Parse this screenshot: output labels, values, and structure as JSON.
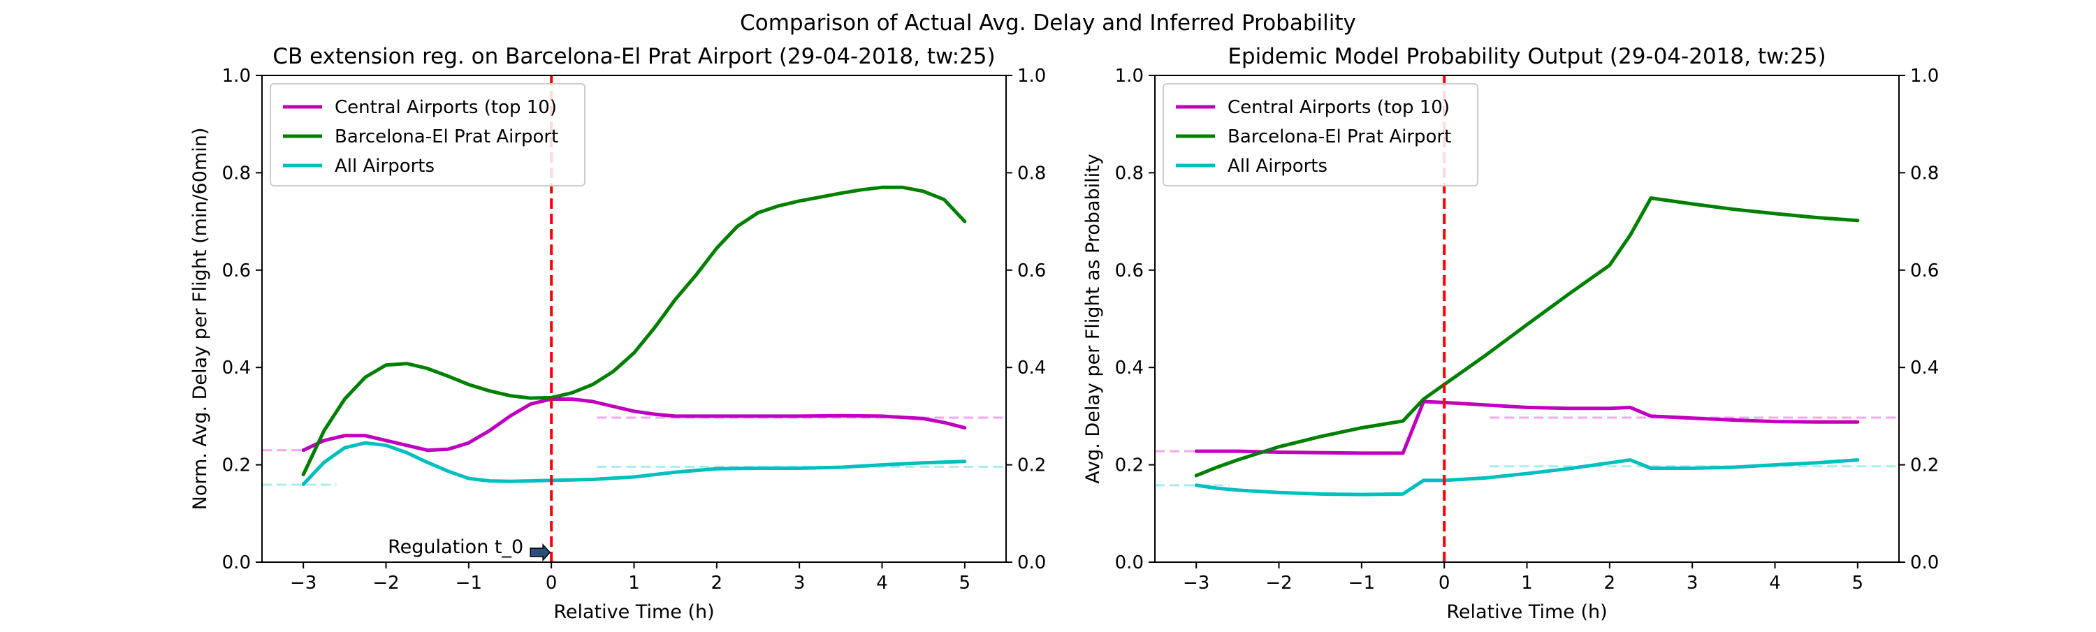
{
  "suptitle": "Comparison of Actual Avg. Delay and Inferred Probability",
  "chart_data": [
    {
      "type": "line",
      "title": "CB extension reg. on Barcelona-El Prat Airport (29-04-2018, tw:25)",
      "xlabel": "Relative Time (h)",
      "ylabel": "Norm. Avg. Delay per Flight (min/60min)",
      "xlim": [
        -3.5,
        5.5
      ],
      "ylim": [
        0,
        1
      ],
      "xticks": [
        "−3",
        "−2",
        "−1",
        "0",
        "1",
        "2",
        "3",
        "4",
        "5"
      ],
      "yticks": [
        "0.0",
        "0.2",
        "0.4",
        "0.6",
        "0.8",
        "1.0"
      ],
      "right_yticks": [
        "0.0",
        "0.2",
        "0.4",
        "0.6",
        "0.8",
        "1.0"
      ],
      "grid": false,
      "legend_position": "upper-left",
      "vline_x": 0,
      "annotation": {
        "text": "Regulation t_0",
        "x": 0,
        "y": 0.02
      },
      "series": [
        {
          "name": "Central Airports (top 10)",
          "color": "#bf00bf",
          "x": [
            -3,
            -2.75,
            -2.5,
            -2.25,
            -2,
            -1.75,
            -1.5,
            -1.25,
            -1,
            -0.75,
            -0.5,
            -0.25,
            0,
            0.25,
            0.5,
            0.75,
            1,
            1.25,
            1.5,
            2,
            2.5,
            3,
            3.5,
            4,
            4.5,
            4.75,
            5
          ],
          "y": [
            0.23,
            0.25,
            0.26,
            0.26,
            0.25,
            0.24,
            0.23,
            0.232,
            0.245,
            0.27,
            0.3,
            0.325,
            0.335,
            0.335,
            0.33,
            0.32,
            0.31,
            0.304,
            0.3,
            0.3,
            0.3,
            0.3,
            0.301,
            0.3,
            0.295,
            0.287,
            0.276
          ]
        },
        {
          "name": "Barcelona-El Prat Airport",
          "color": "#008000",
          "x": [
            -3,
            -2.75,
            -2.5,
            -2.25,
            -2,
            -1.75,
            -1.5,
            -1.25,
            -1,
            -0.75,
            -0.5,
            -0.25,
            0,
            0.25,
            0.5,
            0.75,
            1,
            1.25,
            1.5,
            1.75,
            2,
            2.25,
            2.5,
            2.75,
            3,
            3.25,
            3.5,
            3.75,
            4,
            4.25,
            4.5,
            4.75,
            5
          ],
          "y": [
            0.18,
            0.27,
            0.335,
            0.38,
            0.405,
            0.408,
            0.398,
            0.382,
            0.365,
            0.352,
            0.342,
            0.337,
            0.338,
            0.348,
            0.365,
            0.392,
            0.43,
            0.482,
            0.54,
            0.59,
            0.645,
            0.69,
            0.718,
            0.732,
            0.742,
            0.75,
            0.758,
            0.765,
            0.77,
            0.77,
            0.762,
            0.745,
            0.7
          ]
        },
        {
          "name": "All Airports",
          "color": "#00bfbf",
          "x": [
            -3,
            -2.75,
            -2.5,
            -2.25,
            -2,
            -1.75,
            -1.5,
            -1.25,
            -1,
            -0.75,
            -0.5,
            -0.25,
            0,
            0.5,
            1,
            1.5,
            2,
            2.5,
            3,
            3.5,
            4,
            4.5,
            5
          ],
          "y": [
            0.16,
            0.205,
            0.235,
            0.245,
            0.24,
            0.225,
            0.205,
            0.187,
            0.172,
            0.167,
            0.166,
            0.167,
            0.168,
            0.17,
            0.175,
            0.185,
            0.192,
            0.193,
            0.193,
            0.195,
            0.2,
            0.204,
            0.207
          ]
        }
      ],
      "baselines": [
        {
          "color": "#f2a8ef",
          "y": 0.23,
          "x_range": [
            -3.5,
            -3
          ]
        },
        {
          "color": "#f2a8ef",
          "y": 0.297,
          "x_range": [
            0.55,
            5.5
          ]
        },
        {
          "color": "#a8eeec",
          "y": 0.159,
          "x_range": [
            -3.5,
            -2.6
          ]
        },
        {
          "color": "#a8eeec",
          "y": 0.196,
          "x_range": [
            0.55,
            5.5
          ]
        }
      ]
    },
    {
      "type": "line",
      "title": "Epidemic Model Probability Output (29-04-2018, tw:25)",
      "xlabel": "Relative Time (h)",
      "ylabel": "Avg. Delay per Flight as Probability",
      "xlim": [
        -3.5,
        5.5
      ],
      "ylim": [
        0,
        1
      ],
      "xticks": [
        "−3",
        "−2",
        "−1",
        "0",
        "1",
        "2",
        "3",
        "4",
        "5"
      ],
      "yticks": [
        "0.0",
        "0.2",
        "0.4",
        "0.6",
        "0.8",
        "1.0"
      ],
      "right_yticks": [
        "0.0",
        "0.2",
        "0.4",
        "0.6",
        "0.8",
        "1.0"
      ],
      "grid": false,
      "legend_position": "upper-left",
      "vline_x": 0,
      "series": [
        {
          "name": "Central Airports (top 10)",
          "color": "#bf00bf",
          "x": [
            -3,
            -2.5,
            -2,
            -1.5,
            -1,
            -0.5,
            -0.25,
            0,
            0.5,
            1,
            1.5,
            2,
            2.25,
            2.5,
            3,
            3.5,
            4,
            4.5,
            5
          ],
          "y": [
            0.228,
            0.228,
            0.226,
            0.225,
            0.224,
            0.224,
            0.33,
            0.328,
            0.323,
            0.318,
            0.316,
            0.316,
            0.318,
            0.3,
            0.296,
            0.292,
            0.289,
            0.288,
            0.288
          ]
        },
        {
          "name": "Barcelona-El Prat Airport",
          "color": "#008000",
          "x": [
            -3,
            -2.75,
            -2.5,
            -2,
            -1.5,
            -1,
            -0.5,
            -0.25,
            0,
            0.5,
            1,
            1.5,
            2,
            2.25,
            2.5,
            3,
            3.5,
            4,
            4.5,
            5
          ],
          "y": [
            0.178,
            0.195,
            0.21,
            0.237,
            0.258,
            0.276,
            0.29,
            0.335,
            0.365,
            0.425,
            0.488,
            0.55,
            0.61,
            0.672,
            0.748,
            0.736,
            0.725,
            0.716,
            0.708,
            0.702
          ]
        },
        {
          "name": "All Airports",
          "color": "#00bfbf",
          "x": [
            -3,
            -2.75,
            -2.5,
            -2,
            -1.5,
            -1,
            -0.5,
            -0.25,
            0,
            0.5,
            1,
            1.5,
            2,
            2.25,
            2.5,
            3,
            3.5,
            4,
            4.5,
            5
          ],
          "y": [
            0.158,
            0.152,
            0.148,
            0.143,
            0.14,
            0.139,
            0.14,
            0.168,
            0.168,
            0.173,
            0.182,
            0.192,
            0.204,
            0.21,
            0.193,
            0.193,
            0.195,
            0.2,
            0.204,
            0.21
          ]
        }
      ],
      "baselines": [
        {
          "color": "#f2a8ef",
          "y": 0.228,
          "x_range": [
            -3.5,
            -3
          ]
        },
        {
          "color": "#f2a8ef",
          "y": 0.297,
          "x_range": [
            0.55,
            5.5
          ]
        },
        {
          "color": "#a8eeec",
          "y": 0.158,
          "x_range": [
            -3.5,
            -2.6
          ]
        },
        {
          "color": "#a8eeec",
          "y": 0.197,
          "x_range": [
            0.55,
            5.5
          ]
        }
      ]
    }
  ]
}
